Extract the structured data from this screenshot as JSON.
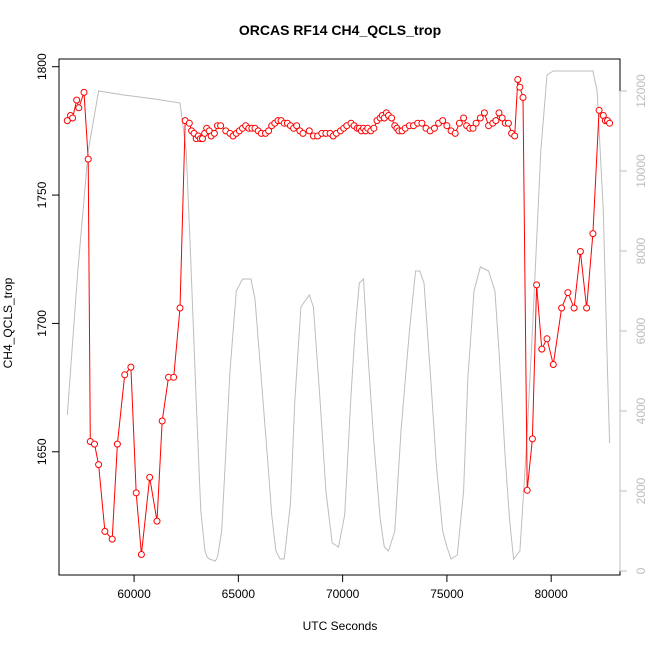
{
  "chart_data": {
    "type": "line",
    "title": "ORCAS RF14 CH4_QCLS_trop",
    "xlabel": "UTC Seconds",
    "ylabel": "CH4_QCLS_trop",
    "xlim": [
      56400,
      83300
    ],
    "ylim": [
      1602,
      1803
    ],
    "y2lim": [
      -100,
      12800
    ],
    "x_ticks": [
      60000,
      65000,
      70000,
      75000,
      80000
    ],
    "y_ticks": [
      1650,
      1700,
      1750,
      1800
    ],
    "y2_ticks": [
      0,
      2000,
      4000,
      6000,
      8000,
      10000,
      12000
    ],
    "colors": {
      "ch4": "#ff0000",
      "altitude": "#bdbdbd"
    },
    "series": [
      {
        "key": "ch4",
        "style": "line+points",
        "x": [
          56800,
          56950,
          57050,
          57250,
          57350,
          57600,
          57800,
          57900,
          58100,
          58300,
          58600,
          58950,
          59200,
          59550,
          59850,
          60100,
          60350,
          60750,
          61100,
          61350,
          61650,
          61900,
          62200,
          62450,
          62650,
          62760,
          62880,
          62980,
          63080,
          63180,
          63280,
          63380,
          63480,
          63600,
          63700,
          63850,
          64000,
          64150,
          64400,
          64600,
          64750,
          64900,
          65050,
          65200,
          65350,
          65500,
          65650,
          65800,
          65950,
          66100,
          66300,
          66450,
          66600,
          66750,
          66900,
          67050,
          67200,
          67350,
          67500,
          67650,
          67800,
          67950,
          68100,
          68400,
          68600,
          68800,
          69000,
          69200,
          69400,
          69550,
          69700,
          69900,
          70050,
          70200,
          70400,
          70550,
          70700,
          70800,
          70900,
          71000,
          71100,
          71200,
          71350,
          71500,
          71650,
          71800,
          71900,
          72000,
          72100,
          72200,
          72350,
          72500,
          72600,
          72700,
          72850,
          73000,
          73200,
          73400,
          73600,
          73800,
          74000,
          74200,
          74400,
          74600,
          74800,
          75000,
          75200,
          75400,
          75600,
          75800,
          75950,
          76100,
          76250,
          76400,
          76600,
          76800,
          77000,
          77200,
          77350,
          77500,
          77650,
          77800,
          77950,
          78100,
          78250,
          78400,
          78500,
          78650,
          78850,
          79100,
          79300,
          79550,
          79800,
          80100,
          80500,
          80800,
          81100,
          81400,
          81700,
          82000,
          82300,
          82500,
          82600,
          82700,
          82800
        ],
        "y": [
          1779,
          1781,
          1780,
          1787,
          1784,
          1790,
          1764,
          1654,
          1653,
          1645,
          1619,
          1616,
          1653,
          1680,
          1683,
          1634,
          1610,
          1640,
          1623,
          1662,
          1679,
          1679,
          1706,
          1779,
          1778,
          1775,
          1774,
          1772,
          1773,
          1772,
          1772,
          1774,
          1776,
          1775,
          1773,
          1774,
          1777,
          1777,
          1775,
          1774,
          1773,
          1774,
          1775,
          1776,
          1777,
          1776,
          1776,
          1776,
          1775,
          1774,
          1774,
          1775,
          1777,
          1778,
          1779,
          1779,
          1778,
          1778,
          1777,
          1776,
          1777,
          1775,
          1774,
          1775,
          1773,
          1773,
          1774,
          1774,
          1774,
          1773,
          1774,
          1775,
          1776,
          1777,
          1778,
          1777,
          1776,
          1776,
          1775,
          1776,
          1775,
          1776,
          1775,
          1776,
          1779,
          1780,
          1781,
          1780,
          1782,
          1781,
          1780,
          1777,
          1776,
          1775,
          1775,
          1776,
          1777,
          1777,
          1778,
          1778,
          1776,
          1775,
          1776,
          1778,
          1779,
          1777,
          1775,
          1774,
          1778,
          1780,
          1777,
          1776,
          1776,
          1778,
          1780,
          1782,
          1777,
          1778,
          1779,
          1782,
          1780,
          1778,
          1778,
          1774,
          1773,
          1795,
          1792,
          1788,
          1635,
          1655,
          1715,
          1690,
          1694,
          1684,
          1706,
          1712,
          1706,
          1728,
          1706,
          1735,
          1783,
          1781,
          1779,
          1779,
          1778
        ]
      },
      {
        "key": "altitude",
        "style": "line",
        "x": [
          56800,
          57300,
          57800,
          58300,
          59500,
          61000,
          62200,
          62500,
          62700,
          63000,
          63200,
          63400,
          63500,
          63600,
          63900,
          64000,
          64200,
          64600,
          64900,
          65200,
          65600,
          65800,
          66100,
          66400,
          66600,
          66800,
          67000,
          67200,
          67500,
          67700,
          68000,
          68400,
          68600,
          68900,
          69200,
          69500,
          69800,
          70100,
          70400,
          70600,
          70800,
          71000,
          71200,
          71500,
          71800,
          72000,
          72200,
          72500,
          72800,
          73200,
          73500,
          73700,
          73900,
          74200,
          74500,
          74800,
          75000,
          75200,
          75500,
          75800,
          76000,
          76300,
          76600,
          77000,
          77300,
          77500,
          77800,
          78000,
          78200,
          78500,
          78800,
          79100,
          79500,
          79800,
          80100,
          80500,
          81000,
          81500,
          82000,
          82200,
          82500,
          82700,
          82800
        ],
        "y": [
          3900,
          7500,
          10500,
          12000,
          11900,
          11800,
          11700,
          10500,
          8000,
          4000,
          1500,
          500,
          350,
          300,
          250,
          350,
          1000,
          5000,
          7000,
          7300,
          7300,
          6800,
          4800,
          2800,
          1400,
          500,
          300,
          300,
          1700,
          4200,
          6600,
          6900,
          6600,
          4400,
          2000,
          700,
          600,
          1400,
          4400,
          6000,
          7200,
          7300,
          5500,
          3200,
          1300,
          600,
          500,
          1000,
          3500,
          6000,
          7500,
          7500,
          7200,
          5000,
          2600,
          1000,
          600,
          300,
          400,
          2000,
          4800,
          7000,
          7600,
          7500,
          7000,
          5500,
          2800,
          1300,
          300,
          500,
          3000,
          6000,
          10500,
          12400,
          12500,
          12500,
          12500,
          12500,
          12500,
          12000,
          9000,
          5000,
          3200
        ]
      }
    ]
  }
}
